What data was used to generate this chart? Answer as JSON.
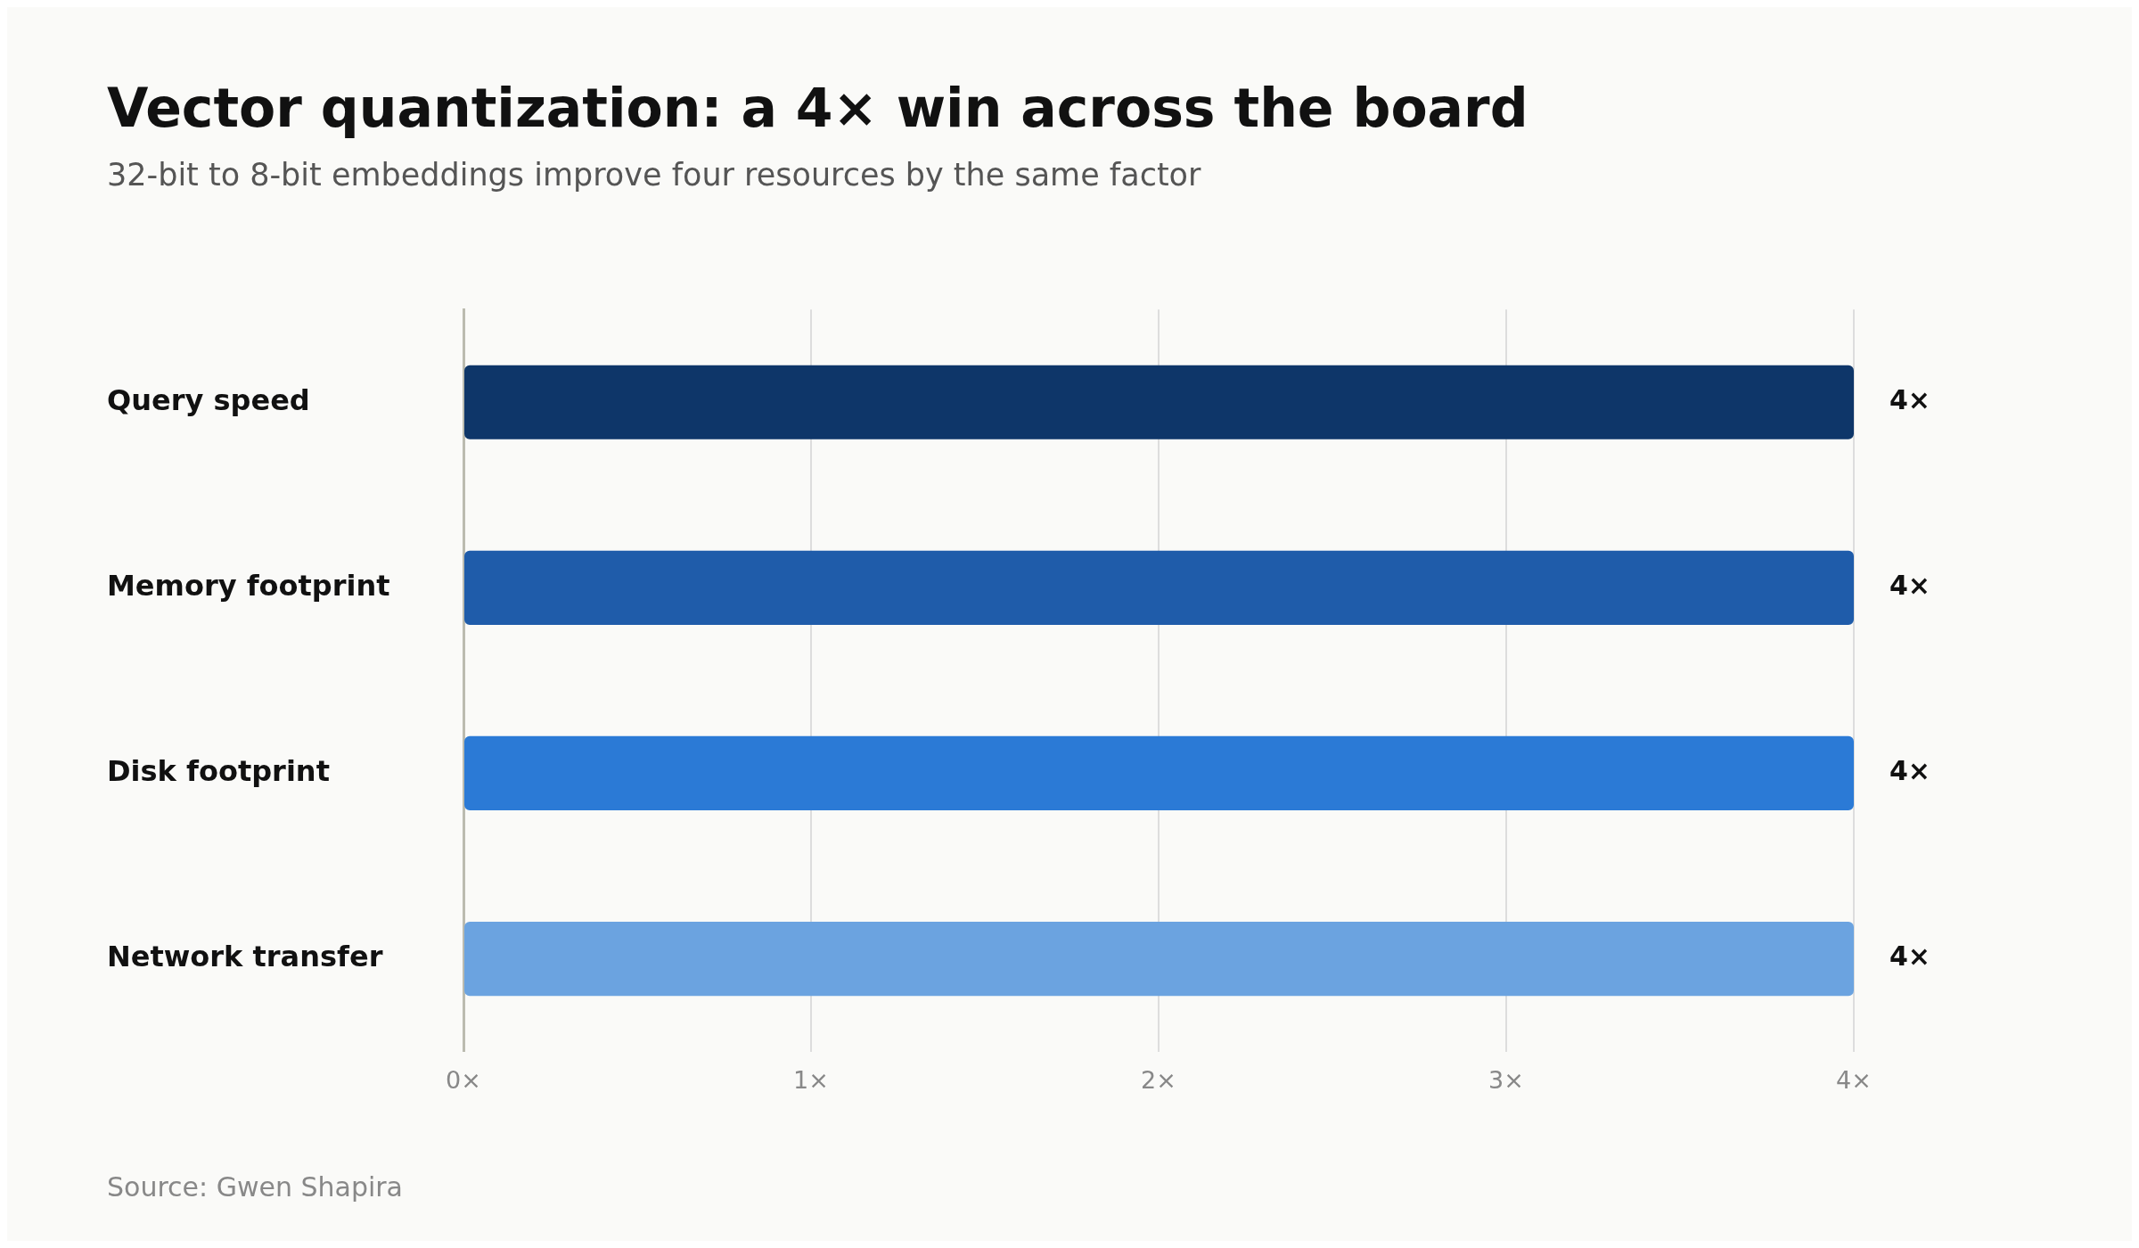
{
  "chart_data": {
    "type": "bar",
    "title": "Vector quantization: a 4× win across the board",
    "subtitle": "32-bit to 8-bit embeddings improve four resources by the same factor",
    "categories": [
      "Query speed",
      "Memory footprint",
      "Disk footprint",
      "Network transfer"
    ],
    "values": [
      4,
      4,
      4,
      4
    ],
    "colors": [
      "#0e3669",
      "#1f5caa",
      "#2b7ad6",
      "#6ba3e0"
    ],
    "value_labels": [
      "4×",
      "4×",
      "4×",
      "4×"
    ],
    "orientation": "horizontal",
    "xlim": [
      0,
      4
    ],
    "xticks": [
      {
        "value": 0,
        "label": "0×"
      },
      {
        "value": 1,
        "label": "1×"
      },
      {
        "value": 2,
        "label": "2×"
      },
      {
        "value": 3,
        "label": "3×"
      },
      {
        "value": 4,
        "label": "4×"
      }
    ],
    "grid": "x",
    "annotations": [
      "Source: Gwen Shapira"
    ]
  }
}
